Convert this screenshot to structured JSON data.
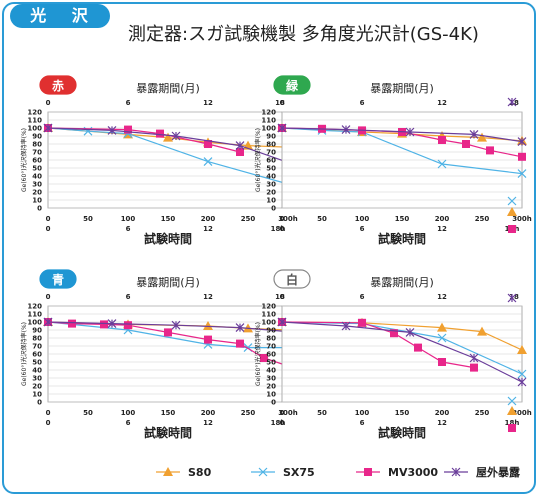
{
  "header": {
    "badge": "光 沢",
    "title": "測定器:スガ試験機製 多角度光沢計(GS-4K)"
  },
  "colors": {
    "S80": "#f0a030",
    "SX75": "#4fb3e6",
    "MV3000": "#e8268a",
    "outdoor": "#6a3d9a"
  },
  "legend": [
    {
      "name": "S80",
      "marker": "triangle",
      "color": "#f0a030"
    },
    {
      "name": "SX75",
      "marker": "x",
      "color": "#4fb3e6"
    },
    {
      "name": "MV3000",
      "marker": "square",
      "color": "#e8268a"
    },
    {
      "name": "屋外暴露",
      "marker": "star",
      "color": "#6a3d9a"
    }
  ],
  "chart_data": [
    {
      "type": "line",
      "panel_label": "赤",
      "label_color": "#e03030",
      "top_axis_title": "暴露期間(月)",
      "top_ticks": [
        "0",
        "6",
        "12",
        "18"
      ],
      "bottom_ticks": [
        "0",
        "6",
        "12",
        "18h"
      ],
      "xlabel": "試験時間",
      "ylabel": "Ge(60°)光沢保持率(%)",
      "x_ticks": [
        "0",
        "50",
        "100",
        "150",
        "200",
        "250",
        "300h"
      ],
      "y_ticks": [
        "0",
        "10",
        "20",
        "30",
        "40",
        "50",
        "60",
        "70",
        "80",
        "90",
        "100",
        "110",
        "120"
      ],
      "xlim": [
        0,
        300
      ],
      "ylim": [
        0,
        120
      ],
      "grid": true,
      "series": [
        {
          "name": "S80",
          "marker": "triangle",
          "x": [
            0,
            100,
            150,
            200,
            250,
            300
          ],
          "values": [
            100,
            92,
            88,
            82,
            78,
            76
          ]
        },
        {
          "name": "SX75",
          "marker": "x",
          "x": [
            0,
            50,
            100,
            200,
            300
          ],
          "values": [
            100,
            96,
            93,
            58,
            30
          ]
        },
        {
          "name": "MV3000",
          "marker": "square",
          "x": [
            0,
            100,
            140,
            200,
            240
          ],
          "values": [
            100,
            98,
            93,
            80,
            70
          ]
        },
        {
          "name": "屋外暴露",
          "marker": "star",
          "x": [
            0,
            80,
            160,
            240,
            300
          ],
          "values": [
            100,
            97,
            90,
            78,
            57
          ]
        }
      ]
    },
    {
      "type": "line",
      "panel_label": "緑",
      "label_color": "#2fa84f",
      "top_axis_title": "暴露期間(月)",
      "top_ticks": [
        "0",
        "6",
        "12",
        "18"
      ],
      "bottom_ticks": [
        "0",
        "6",
        "12",
        "18h"
      ],
      "xlabel": "試験時間",
      "ylabel": "Ge(60°)光沢保持率(%)",
      "x_ticks": [
        "0",
        "50",
        "100",
        "150",
        "200",
        "250",
        "300h"
      ],
      "y_ticks": [
        "0",
        "10",
        "20",
        "30",
        "40",
        "50",
        "60",
        "70",
        "80",
        "90",
        "100",
        "110",
        "120"
      ],
      "xlim": [
        0,
        300
      ],
      "ylim": [
        0,
        120
      ],
      "grid": true,
      "series": [
        {
          "name": "S80",
          "marker": "triangle",
          "x": [
            0,
            100,
            150,
            200,
            250,
            300
          ],
          "values": [
            100,
            95,
            93,
            90,
            88,
            84
          ]
        },
        {
          "name": "SX75",
          "marker": "x",
          "x": [
            0,
            50,
            100,
            200,
            300
          ],
          "values": [
            100,
            97,
            95,
            55,
            43
          ]
        },
        {
          "name": "MV3000",
          "marker": "square",
          "x": [
            0,
            50,
            100,
            150,
            200,
            230,
            260,
            300
          ],
          "values": [
            100,
            99,
            97,
            95,
            85,
            80,
            72,
            64
          ]
        },
        {
          "name": "屋外暴露",
          "marker": "star",
          "x": [
            0,
            80,
            160,
            240,
            300
          ],
          "values": [
            100,
            98,
            95,
            92,
            83
          ]
        }
      ]
    },
    {
      "type": "line",
      "panel_label": "青",
      "label_color": "#1f96d3",
      "top_axis_title": "暴露期間(月)",
      "top_ticks": [
        "0",
        "6",
        "12",
        "18"
      ],
      "bottom_ticks": [
        "0",
        "6",
        "12",
        "18h"
      ],
      "xlabel": "試験時間",
      "ylabel": "Ge(60°)光沢保持率(%)",
      "x_ticks": [
        "0",
        "50",
        "100",
        "150",
        "200",
        "250",
        "300h"
      ],
      "y_ticks": [
        "0",
        "10",
        "20",
        "30",
        "40",
        "50",
        "60",
        "70",
        "80",
        "90",
        "100",
        "110",
        "120"
      ],
      "xlim": [
        0,
        300
      ],
      "ylim": [
        0,
        120
      ],
      "grid": true,
      "series": [
        {
          "name": "S80",
          "marker": "triangle",
          "x": [
            0,
            100,
            200,
            250,
            300
          ],
          "values": [
            100,
            97,
            95,
            92,
            90
          ]
        },
        {
          "name": "SX75",
          "marker": "x",
          "x": [
            0,
            100,
            200,
            250,
            300
          ],
          "values": [
            100,
            90,
            72,
            68,
            68
          ]
        },
        {
          "name": "MV3000",
          "marker": "square",
          "x": [
            0,
            30,
            70,
            100,
            150,
            200,
            240,
            270,
            300
          ],
          "values": [
            100,
            98,
            97,
            96,
            87,
            78,
            73,
            55,
            45
          ]
        },
        {
          "name": "屋外暴露",
          "marker": "star",
          "x": [
            0,
            80,
            160,
            240,
            300
          ],
          "values": [
            100,
            98,
            96,
            93,
            88
          ]
        }
      ]
    },
    {
      "type": "line",
      "panel_label": "白",
      "label_color": "#888888",
      "top_axis_title": "暴露期間(月)",
      "top_ticks": [
        "0",
        "6",
        "12",
        "18"
      ],
      "bottom_ticks": [
        "0",
        "6",
        "12",
        "18h"
      ],
      "xlabel": "試験時間",
      "ylabel": "Ge(60°)光沢保持率(%)",
      "x_ticks": [
        "0",
        "50",
        "100",
        "150",
        "200",
        "250",
        "300h"
      ],
      "y_ticks": [
        "0",
        "10",
        "20",
        "30",
        "40",
        "50",
        "60",
        "70",
        "80",
        "90",
        "100",
        "110",
        "120"
      ],
      "xlim": [
        0,
        300
      ],
      "ylim": [
        0,
        120
      ],
      "grid": true,
      "series": [
        {
          "name": "S80",
          "marker": "triangle",
          "x": [
            0,
            100,
            200,
            250,
            300
          ],
          "values": [
            100,
            99,
            93,
            88,
            65
          ]
        },
        {
          "name": "SX75",
          "marker": "x",
          "x": [
            0,
            100,
            200,
            300
          ],
          "values": [
            100,
            98,
            80,
            35
          ]
        },
        {
          "name": "MV3000",
          "marker": "square",
          "x": [
            0,
            100,
            140,
            170,
            200,
            240
          ],
          "values": [
            100,
            99,
            86,
            68,
            50,
            43
          ]
        },
        {
          "name": "屋外暴露",
          "marker": "star",
          "x": [
            0,
            80,
            160,
            240,
            300
          ],
          "values": [
            100,
            95,
            87,
            55,
            25
          ]
        }
      ]
    }
  ]
}
